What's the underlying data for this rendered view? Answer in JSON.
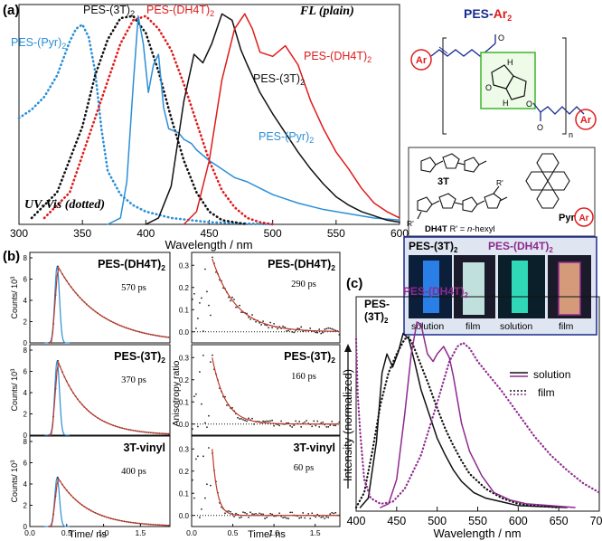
{
  "panels": {
    "a": "(a)",
    "b": "(b)",
    "c": "(c)"
  },
  "colors": {
    "blue": "#2a8fd6",
    "black": "#111111",
    "red": "#e01b1b",
    "purple": "#8e2a8e",
    "fitred": "#c0392b"
  },
  "chart_data": [
    {
      "id": "a",
      "type": "line",
      "title": "",
      "xlabel": "Wavelength / nm",
      "ylabel": "",
      "xlim": [
        300,
        600
      ],
      "ylim": [
        0,
        1
      ],
      "xticks": [
        300,
        350,
        400,
        450,
        500,
        550,
        600
      ],
      "annotations": {
        "fl": "FL (plain)",
        "uv": "UV-Vis (dotted)"
      },
      "series": [
        {
          "name": "PES-(Pyr)2 UV",
          "label": "PES-(Pyr)",
          "sub": "2",
          "color": "blue",
          "dotted": true,
          "x": [
            300,
            310,
            320,
            330,
            335,
            340,
            345,
            350,
            355,
            360,
            365,
            370,
            380,
            390,
            400,
            420,
            450,
            500
          ],
          "y": [
            0.5,
            0.54,
            0.6,
            0.7,
            0.78,
            0.86,
            0.92,
            0.94,
            0.88,
            0.72,
            0.45,
            0.25,
            0.14,
            0.09,
            0.06,
            0.03,
            0.01,
            0
          ]
        },
        {
          "name": "PES-(3T)2 UV",
          "label": "PES-(3T)",
          "sub": "2",
          "color": "black",
          "dotted": true,
          "x": [
            310,
            330,
            350,
            360,
            370,
            380,
            390,
            400,
            410,
            420,
            430,
            440,
            450,
            460,
            470,
            480
          ],
          "y": [
            0.03,
            0.15,
            0.46,
            0.7,
            0.87,
            0.97,
            0.98,
            0.9,
            0.72,
            0.5,
            0.3,
            0.15,
            0.06,
            0.02,
            0.01,
            0
          ]
        },
        {
          "name": "PES-(DH4T)2 UV",
          "label": "PES-(DH4T)",
          "sub": "2",
          "color": "red",
          "dotted": true,
          "x": [
            320,
            340,
            360,
            380,
            390,
            400,
            410,
            420,
            430,
            440,
            450,
            460,
            470,
            480,
            490,
            500
          ],
          "y": [
            0.03,
            0.15,
            0.5,
            0.85,
            0.96,
            0.98,
            0.92,
            0.82,
            0.66,
            0.48,
            0.3,
            0.16,
            0.08,
            0.03,
            0.01,
            0
          ]
        },
        {
          "name": "PES-(Pyr)2 FL",
          "label": "PES-(Pyr)",
          "sub": "2",
          "color": "blue",
          "dotted": false,
          "x": [
            370,
            380,
            385,
            390,
            394,
            398,
            402,
            406,
            410,
            414,
            418,
            422,
            426,
            430,
            436,
            440,
            450,
            460,
            470,
            480,
            490,
            500,
            510,
            520,
            540,
            560,
            580,
            600
          ],
          "y": [
            0,
            0.03,
            0.2,
            0.65,
            0.98,
            0.85,
            0.62,
            0.75,
            0.8,
            0.55,
            0.45,
            0.44,
            0.43,
            0.4,
            0.38,
            0.35,
            0.3,
            0.26,
            0.22,
            0.2,
            0.17,
            0.14,
            0.12,
            0.1,
            0.07,
            0.05,
            0.03,
            0.02
          ]
        },
        {
          "name": "PES-(3T)2 FL",
          "label": "PES-(3T)",
          "sub": "2",
          "color": "black",
          "dotted": false,
          "x": [
            400,
            410,
            420,
            430,
            438,
            445,
            452,
            460,
            468,
            475,
            480,
            490,
            500,
            510,
            520,
            530,
            540,
            550,
            560,
            570,
            580,
            590,
            600
          ],
          "y": [
            0,
            0.03,
            0.18,
            0.58,
            0.8,
            0.76,
            0.85,
            0.99,
            0.96,
            0.82,
            0.75,
            0.62,
            0.52,
            0.43,
            0.34,
            0.26,
            0.19,
            0.13,
            0.09,
            0.06,
            0.04,
            0.02,
            0.01
          ]
        },
        {
          "name": "PES-(DH4T)2 FL",
          "label": "PES-(DH4T)",
          "sub": "2",
          "color": "red",
          "dotted": false,
          "x": [
            430,
            440,
            450,
            460,
            470,
            478,
            484,
            490,
            500,
            510,
            520,
            530,
            540,
            550,
            560,
            570,
            580,
            590,
            600
          ],
          "y": [
            0,
            0.06,
            0.3,
            0.68,
            0.92,
            0.99,
            0.92,
            0.81,
            0.79,
            0.84,
            0.75,
            0.58,
            0.45,
            0.34,
            0.26,
            0.17,
            0.1,
            0.06,
            0.03
          ]
        }
      ]
    },
    {
      "id": "b-decay",
      "type": "scatter",
      "xlabel": "Time/ ns",
      "ylabel": "Counts/ 10",
      "ylabel_sup": "3",
      "xlim": [
        0,
        1.9
      ],
      "ylim": [
        0,
        8
      ],
      "xticks": [
        0.0,
        0.5,
        1.0,
        1.5
      ],
      "yticks": [
        0,
        2,
        4,
        6,
        8
      ],
      "rows": [
        {
          "label": "PES-(DH4T)",
          "sub": "2",
          "lifetime": "570 ps",
          "peak": 7.2,
          "tau": 0.57
        },
        {
          "label": "PES-(3T)",
          "sub": "2",
          "lifetime": "370 ps",
          "peak": 7.0,
          "tau": 0.37
        },
        {
          "label": "3T-vinyl",
          "sub": "",
          "lifetime": "400 ps",
          "peak": 4.6,
          "tau": 0.4
        }
      ]
    },
    {
      "id": "b-anisotropy",
      "type": "scatter",
      "xlabel": "Time/ ns",
      "ylabel": "Anisotropy ratio",
      "xlim": [
        0,
        1.8
      ],
      "ylim": [
        -0.05,
        0.35
      ],
      "xticks": [
        0.0,
        0.5,
        1.0,
        1.5
      ],
      "yticks": [
        0.0,
        0.1,
        0.2,
        0.3
      ],
      "rows": [
        {
          "label": "PES-(DH4T)",
          "sub": "2",
          "lifetime": "290 ps",
          "r0": 0.33,
          "tau": 0.29
        },
        {
          "label": "PES-(3T)",
          "sub": "2",
          "lifetime": "160 ps",
          "r0": 0.3,
          "tau": 0.16
        },
        {
          "label": "3T-vinyl",
          "sub": "",
          "lifetime": "60 ps",
          "r0": 0.3,
          "tau": 0.06
        }
      ]
    },
    {
      "id": "c",
      "type": "line",
      "xlabel": "Wavelength / nm",
      "ylabel": "Intensity (normalized)",
      "xlim": [
        400,
        700
      ],
      "ylim": [
        0,
        1
      ],
      "xticks": [
        400,
        450,
        500,
        550,
        600,
        650,
        700
      ],
      "legend": {
        "solution": "solution",
        "film": "film"
      },
      "labels": {
        "p3t_a": "PES-",
        "p3t_b": "(3T)",
        "p3t_sub": "2",
        "dh4t": "PES-(DH4T)",
        "dh4t_sub": "2"
      },
      "series": [
        {
          "name": "PES-(3T)2 solution",
          "color": "black",
          "dotted": false,
          "x": [
            405,
            415,
            425,
            432,
            438,
            445,
            452,
            458,
            465,
            472,
            480,
            490,
            500,
            510,
            520,
            530,
            545,
            560,
            580,
            600,
            630,
            660
          ],
          "y": [
            0,
            0.05,
            0.35,
            0.72,
            0.82,
            0.75,
            0.83,
            0.93,
            0.9,
            0.78,
            0.63,
            0.5,
            0.37,
            0.28,
            0.2,
            0.14,
            0.08,
            0.05,
            0.03,
            0.01,
            0.005,
            0
          ]
        },
        {
          "name": "PES-(3T)2 film",
          "color": "black",
          "dotted": true,
          "x": [
            400,
            410,
            420,
            430,
            440,
            450,
            460,
            465,
            470,
            480,
            490,
            500,
            510,
            520,
            530,
            540,
            560,
            580,
            600,
            620,
            650
          ],
          "y": [
            0,
            0.08,
            0.3,
            0.55,
            0.72,
            0.82,
            0.9,
            0.91,
            0.87,
            0.76,
            0.65,
            0.53,
            0.42,
            0.33,
            0.25,
            0.18,
            0.1,
            0.05,
            0.02,
            0.01,
            0
          ]
        },
        {
          "name": "PES-(DH4T)2 solution",
          "color": "purple",
          "dotted": false,
          "x": [
            430,
            440,
            450,
            460,
            468,
            475,
            480,
            488,
            495,
            500,
            508,
            515,
            520,
            530,
            540,
            555,
            570,
            590,
            610,
            640,
            670
          ],
          "y": [
            0,
            0.02,
            0.15,
            0.5,
            0.82,
            0.99,
            0.98,
            0.82,
            0.78,
            0.82,
            0.86,
            0.8,
            0.7,
            0.45,
            0.3,
            0.17,
            0.08,
            0.04,
            0.02,
            0.01,
            0
          ]
        },
        {
          "name": "PES-(DH4T)2 film",
          "color": "purple",
          "dotted": true,
          "x": [
            400,
            402,
            405,
            410,
            418,
            430,
            445,
            460,
            480,
            500,
            515,
            525,
            532,
            540,
            550,
            565,
            580,
            600,
            620,
            640,
            660,
            680,
            700
          ],
          "y": [
            0.9,
            0.6,
            0.4,
            0.15,
            0.05,
            0.02,
            0.03,
            0.1,
            0.28,
            0.56,
            0.78,
            0.86,
            0.88,
            0.85,
            0.78,
            0.7,
            0.62,
            0.5,
            0.38,
            0.28,
            0.2,
            0.13,
            0.08
          ]
        }
      ]
    }
  ],
  "structure": {
    "title": "PES-",
    "title_ar": "Ar",
    "title_sub": "2",
    "ar": "Ar",
    "n": "n",
    "o": "O",
    "h": "H",
    "oligomers": {
      "t3": "3T",
      "dh4t": "DH4T",
      "rprime": "R' = ",
      "hexyl": "n",
      "hexyl_rest": "-hexyl",
      "pyr": "Pyr",
      "rlabel": "R'",
      "ar": "Ar"
    }
  },
  "photo": {
    "header_3t": "PES-(3T)",
    "header_3t_sub": "2",
    "header_dh4t": "PES-(DH4T)",
    "header_dh4t_sub": "2",
    "captions": [
      "solution",
      "film",
      "solution",
      "film"
    ]
  }
}
